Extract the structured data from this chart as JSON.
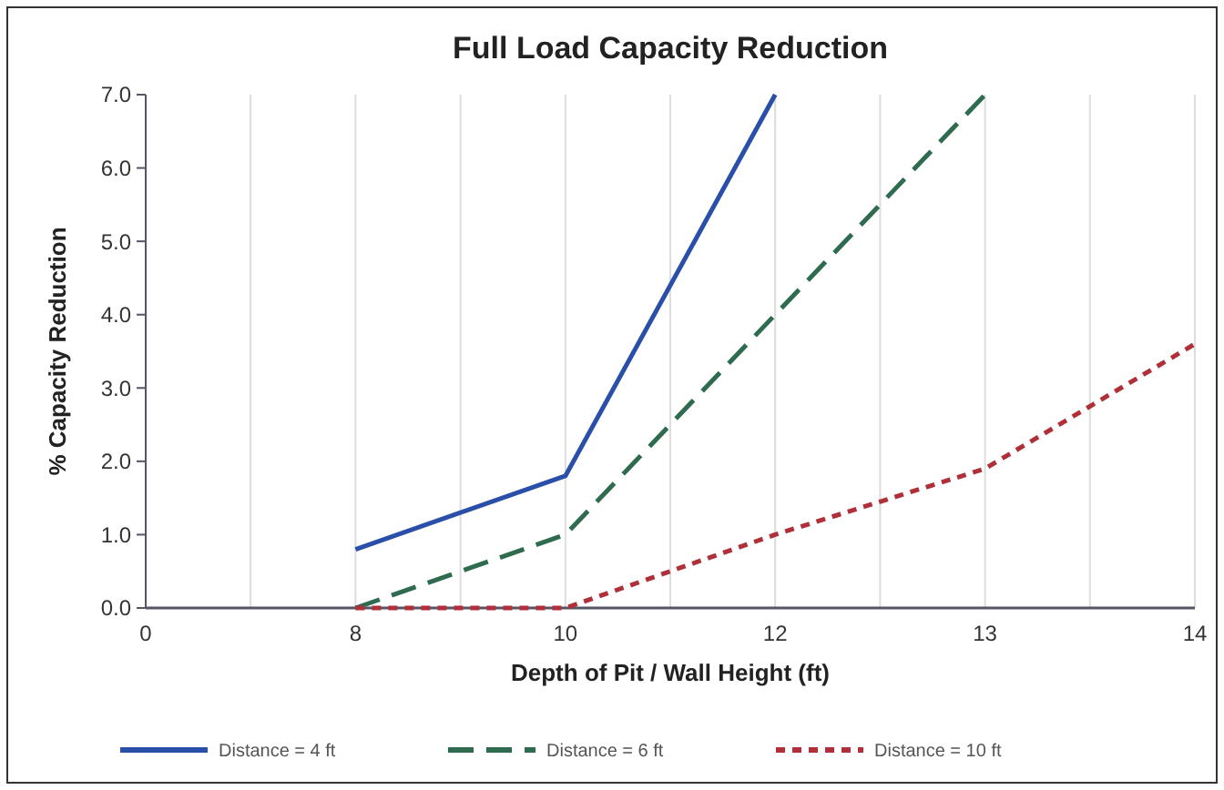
{
  "chart_data": {
    "type": "line",
    "title": "Full Load Capacity Reduction",
    "xlabel": "Depth of Pit / Wall Height (ft)",
    "ylabel": "% Capacity Reduction",
    "categories": [
      "0",
      "8",
      "10",
      "12",
      "13",
      "14"
    ],
    "series": [
      {
        "name": "Distance = 4 ft",
        "color": "#2a4fa8",
        "line_style": "solid",
        "values": [
          null,
          0.8,
          1.8,
          7.0,
          null,
          null
        ]
      },
      {
        "name": "Distance = 6 ft",
        "color": "#2e6b4f",
        "line_style": "dashed",
        "values": [
          null,
          0.0,
          1.0,
          4.0,
          7.0,
          null
        ]
      },
      {
        "name": "Distance = 10 ft",
        "color": "#b0303a",
        "line_style": "dotted",
        "values": [
          null,
          0.0,
          0.0,
          1.0,
          1.9,
          3.6
        ]
      }
    ],
    "ylim": [
      0,
      7
    ],
    "yticks": [
      {
        "value": 0,
        "label": "0.0"
      },
      {
        "value": 1,
        "label": "1.0"
      },
      {
        "value": 2,
        "label": "2.0"
      },
      {
        "value": 3,
        "label": "3.0"
      },
      {
        "value": 4,
        "label": "4.0"
      },
      {
        "value": 5,
        "label": "5.0"
      },
      {
        "value": 6,
        "label": "6.0"
      },
      {
        "value": 7,
        "label": "7.0"
      }
    ],
    "grid": "x",
    "legend": "bottom",
    "marker": "none"
  }
}
